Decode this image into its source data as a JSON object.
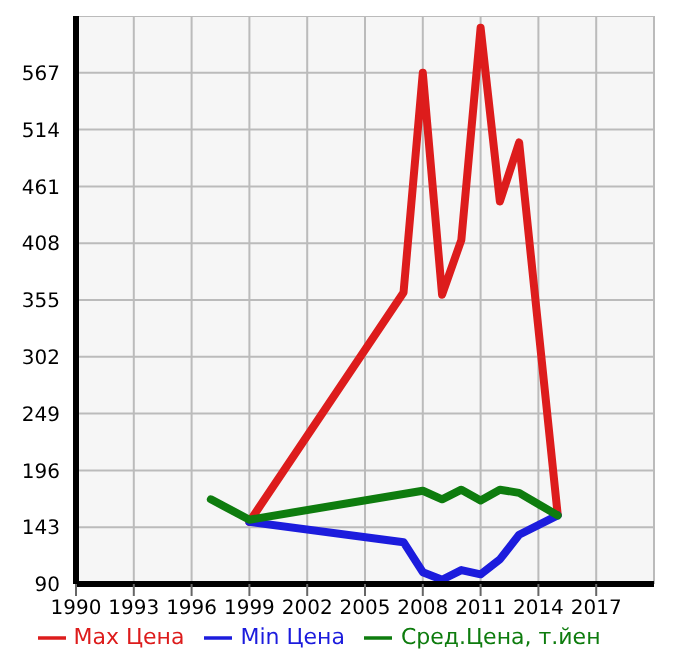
{
  "chart_data": {
    "type": "line",
    "xlim": [
      1990,
      2020
    ],
    "xticks": [
      1990,
      1993,
      1996,
      1999,
      2002,
      2005,
      2008,
      2011,
      2014,
      2017
    ],
    "ylim": [
      90,
      620
    ],
    "yticks": [
      90,
      143,
      196,
      249,
      302,
      355,
      408,
      461,
      514,
      567
    ],
    "grid": true,
    "legend": "bottom",
    "marker": "none",
    "line_style": "solid",
    "series": [
      {
        "name": "Max Цена",
        "color": "#dd1c1c",
        "x": [
          1999,
          2007,
          2008,
          2009,
          2010,
          2011,
          2012,
          2013,
          2015
        ],
        "values": [
          148,
          362,
          567,
          360,
          411,
          609,
          447,
          502,
          155
        ]
      },
      {
        "name": "Min Цена",
        "color": "#1c1cdd",
        "x": [
          1999,
          2007,
          2008,
          2009,
          2010,
          2011,
          2012,
          2013,
          2015
        ],
        "values": [
          148,
          129,
          101,
          94,
          103,
          99,
          113,
          136,
          154
        ]
      },
      {
        "name": "Сред.Цена, т.йен",
        "color": "#0e7c0e",
        "x": [
          1997,
          1999,
          2008,
          2009,
          2010,
          2011,
          2012,
          2013,
          2015
        ],
        "values": [
          169,
          150,
          177,
          169,
          178,
          168,
          178,
          175,
          154
        ]
      }
    ]
  }
}
